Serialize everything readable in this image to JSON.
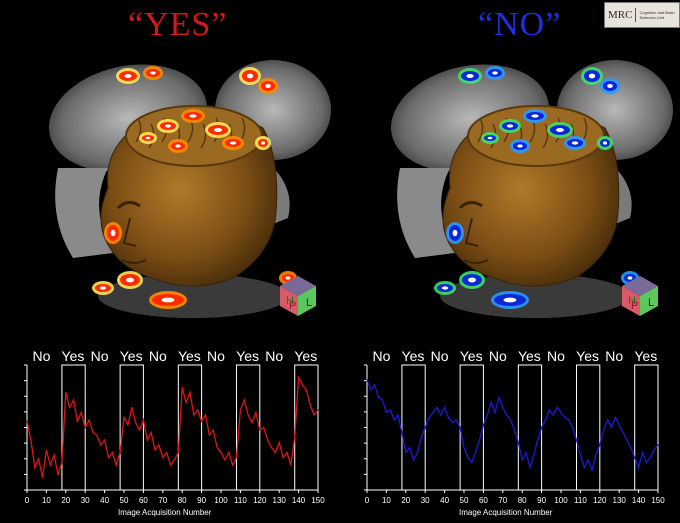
{
  "panels": [
    {
      "title": "“YES”",
      "color": "#d41717",
      "activation_colors": [
        "#ff2a00",
        "#ff8c00",
        "#ffe65a",
        "#ffffff"
      ]
    },
    {
      "title": "“NO”",
      "color": "#1d2fe0",
      "activation_colors": [
        "#0a28d8",
        "#2a9aff",
        "#3de06a",
        "#ffffff"
      ]
    }
  ],
  "logo": {
    "text": "MRC",
    "unit": "Cognition and Brain Sciences Unit"
  },
  "orientation_cube": {
    "letters": [
      "H",
      "P",
      "L"
    ]
  },
  "chart_data": [
    {
      "type": "line",
      "color": "#e01414",
      "block_labels": [
        "No",
        "Yes",
        "No",
        "Yes",
        "No",
        "Yes",
        "No",
        "Yes",
        "No",
        "Yes"
      ],
      "yes_blocks": [
        [
          18,
          30
        ],
        [
          48,
          60
        ],
        [
          78,
          90
        ],
        [
          108,
          120
        ],
        [
          138,
          150
        ]
      ],
      "xlabel": "Image Acquisition Number",
      "xticks": [
        0,
        10,
        20,
        30,
        40,
        50,
        60,
        70,
        80,
        90,
        100,
        110,
        120,
        130,
        140,
        150
      ],
      "xlim": [
        0,
        150
      ],
      "ylim": [
        0,
        1
      ],
      "x": [
        0,
        2,
        4,
        6,
        8,
        10,
        12,
        14,
        16,
        18,
        20,
        22,
        24,
        26,
        28,
        30,
        32,
        34,
        36,
        38,
        40,
        42,
        44,
        46,
        48,
        50,
        52,
        54,
        56,
        58,
        60,
        62,
        64,
        66,
        68,
        70,
        72,
        74,
        76,
        78,
        80,
        82,
        84,
        86,
        88,
        90,
        92,
        94,
        96,
        98,
        100,
        102,
        104,
        106,
        108,
        110,
        112,
        114,
        116,
        118,
        120,
        122,
        124,
        126,
        128,
        130,
        132,
        134,
        136,
        138,
        140,
        142,
        144,
        146,
        148,
        150
      ],
      "values": [
        0.55,
        0.4,
        0.18,
        0.25,
        0.1,
        0.32,
        0.2,
        0.28,
        0.12,
        0.22,
        0.78,
        0.66,
        0.72,
        0.55,
        0.62,
        0.5,
        0.56,
        0.46,
        0.44,
        0.36,
        0.4,
        0.26,
        0.3,
        0.2,
        0.3,
        0.58,
        0.52,
        0.66,
        0.54,
        0.48,
        0.56,
        0.4,
        0.46,
        0.32,
        0.36,
        0.26,
        0.3,
        0.2,
        0.24,
        0.3,
        0.82,
        0.7,
        0.78,
        0.6,
        0.64,
        0.55,
        0.6,
        0.44,
        0.48,
        0.34,
        0.3,
        0.24,
        0.3,
        0.2,
        0.26,
        0.64,
        0.72,
        0.6,
        0.54,
        0.62,
        0.48,
        0.5,
        0.4,
        0.34,
        0.3,
        0.38,
        0.26,
        0.3,
        0.2,
        0.42,
        0.9,
        0.84,
        0.8,
        0.68,
        0.6,
        0.64
      ]
    },
    {
      "type": "line",
      "color": "#1a1ad8",
      "block_labels": [
        "No",
        "Yes",
        "No",
        "Yes",
        "No",
        "Yes",
        "No",
        "Yes",
        "No",
        "Yes"
      ],
      "yes_blocks": [
        [
          18,
          30
        ],
        [
          48,
          60
        ],
        [
          78,
          90
        ],
        [
          108,
          120
        ],
        [
          138,
          150
        ]
      ],
      "xlabel": "Image Acquisition Number",
      "xticks": [
        0,
        10,
        20,
        30,
        40,
        50,
        60,
        70,
        80,
        90,
        100,
        110,
        120,
        130,
        140,
        150
      ],
      "xlim": [
        0,
        150
      ],
      "ylim": [
        0,
        1
      ],
      "x": [
        0,
        2,
        4,
        6,
        8,
        10,
        12,
        14,
        16,
        18,
        20,
        22,
        24,
        26,
        28,
        30,
        32,
        34,
        36,
        38,
        40,
        42,
        44,
        46,
        48,
        50,
        52,
        54,
        56,
        58,
        60,
        62,
        64,
        66,
        68,
        70,
        72,
        74,
        76,
        78,
        80,
        82,
        84,
        86,
        88,
        90,
        92,
        94,
        96,
        98,
        100,
        102,
        104,
        106,
        108,
        110,
        112,
        114,
        116,
        118,
        120,
        122,
        124,
        126,
        128,
        130,
        132,
        134,
        136,
        138,
        140,
        142,
        144,
        146,
        148,
        150
      ],
      "values": [
        0.88,
        0.8,
        0.84,
        0.74,
        0.72,
        0.62,
        0.64,
        0.56,
        0.6,
        0.46,
        0.3,
        0.34,
        0.24,
        0.3,
        0.42,
        0.5,
        0.58,
        0.62,
        0.66,
        0.6,
        0.66,
        0.58,
        0.54,
        0.56,
        0.5,
        0.34,
        0.26,
        0.22,
        0.3,
        0.4,
        0.52,
        0.6,
        0.7,
        0.62,
        0.74,
        0.66,
        0.6,
        0.56,
        0.48,
        0.38,
        0.24,
        0.3,
        0.18,
        0.28,
        0.4,
        0.5,
        0.56,
        0.64,
        0.6,
        0.66,
        0.62,
        0.58,
        0.56,
        0.5,
        0.4,
        0.28,
        0.18,
        0.24,
        0.16,
        0.28,
        0.36,
        0.48,
        0.56,
        0.5,
        0.58,
        0.52,
        0.46,
        0.4,
        0.34,
        0.26,
        0.18,
        0.3,
        0.22,
        0.26,
        0.32,
        0.36
      ]
    }
  ]
}
